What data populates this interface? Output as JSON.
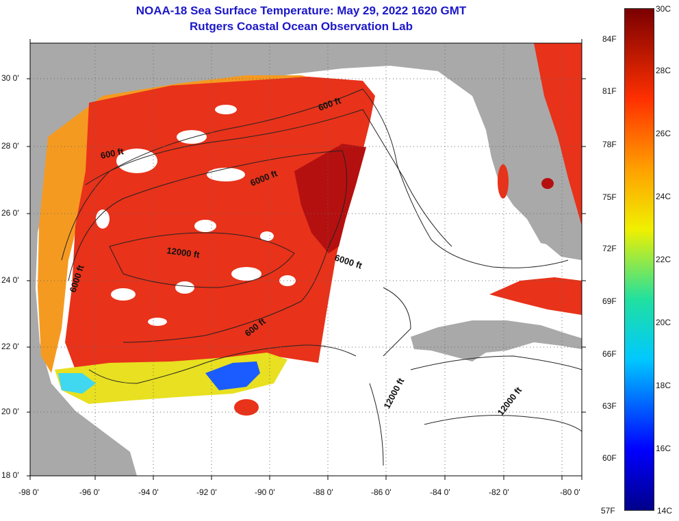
{
  "header": {
    "title": "NOAA-18 Sea Surface Temperature:  May 29, 2022 1620 GMT",
    "subtitle": "Rutgers Coastal Ocean Observation Lab"
  },
  "lat_labels": [
    "30 0'",
    "28 0'",
    "26 0'",
    "24 0'",
    "22 0'",
    "20 0'",
    "18 0'"
  ],
  "lon_labels": [
    "-98 0'",
    "-96 0'",
    "-94 0'",
    "-92 0'",
    "-90 0'",
    "-88 0'",
    "-86 0'",
    "-84 0'",
    "-82 0'",
    "-80 0'"
  ],
  "contours": {
    "c600_a": "600 ft",
    "c6000_a": "6000 ft",
    "c600_b": "600 ft",
    "c6000_b": "6000 ft",
    "c12000_a": "12000 ft",
    "c6000_c": "6000 ft",
    "c600_c": "600 ft",
    "c12000_b": "12000 ft",
    "c12000_c": "12000 ft"
  },
  "colorbar": {
    "fahrenheit": [
      "84F",
      "81F",
      "78F",
      "75F",
      "72F",
      "69F",
      "66F",
      "63F",
      "60F",
      "57F"
    ],
    "celsius": [
      "30C",
      "28C",
      "26C",
      "24C",
      "22C",
      "20C",
      "18C",
      "16C",
      "14C"
    ]
  },
  "colors": {
    "title": "#1b17c8",
    "land": "#a9a9a9",
    "no_data": "#ffffff",
    "warm": "#e8321a",
    "hot": "#b51010",
    "cool": "#f59a20"
  }
}
